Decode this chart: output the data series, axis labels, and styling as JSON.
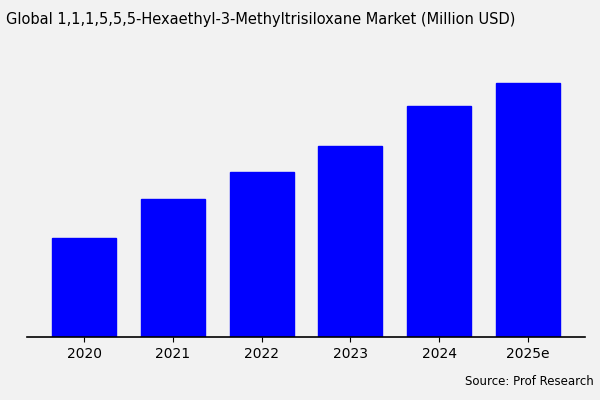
{
  "title": "Global 1,1,1,5,5,5-Hexaethyl-3-Methyltrisiloxane Market (Million USD)",
  "categories": [
    "2020",
    "2021",
    "2022",
    "2023",
    "2024",
    "2025e"
  ],
  "values": [
    3.0,
    4.2,
    5.0,
    5.8,
    7.0,
    7.7
  ],
  "bar_color": "#0000ff",
  "background_color": "#f2f2f2",
  "source_text": "Source: Prof Research",
  "title_fontsize": 10.5,
  "tick_fontsize": 10,
  "source_fontsize": 8.5,
  "bar_width": 0.72
}
